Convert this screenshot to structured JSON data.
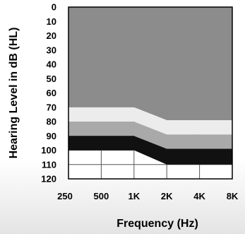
{
  "chart_data": {
    "type": "area",
    "xlabel": "Frequency (Hz)",
    "ylabel": "Hearing Level in dB (HL)",
    "x_categories": [
      "250",
      "500",
      "1K",
      "2K",
      "4K",
      "8K"
    ],
    "y_ticks": [
      "0",
      "10",
      "20",
      "30",
      "40",
      "50",
      "60",
      "70",
      "80",
      "90",
      "100",
      "110",
      "120"
    ],
    "ylim": [
      0,
      120
    ],
    "y_inverted": true,
    "grid": true,
    "series": [
      {
        "color": "#8c8c8c",
        "values": [
          0,
          0,
          0,
          0,
          0,
          0
        ],
        "values_bottom": [
          70,
          70,
          70,
          79,
          79,
          79
        ]
      },
      {
        "color": "#ececec",
        "values": [
          70,
          70,
          70,
          79,
          79,
          79
        ],
        "values_bottom": [
          80,
          80,
          80,
          89,
          89,
          89
        ]
      },
      {
        "color": "#a9a9a9",
        "values": [
          80,
          80,
          80,
          89,
          89,
          89
        ],
        "values_bottom": [
          90,
          90,
          90,
          99,
          99,
          99
        ]
      },
      {
        "color": "#111111",
        "values": [
          90,
          90,
          90,
          99,
          99,
          99
        ],
        "values_bottom": [
          100,
          100,
          100,
          110,
          110,
          110
        ]
      }
    ]
  }
}
